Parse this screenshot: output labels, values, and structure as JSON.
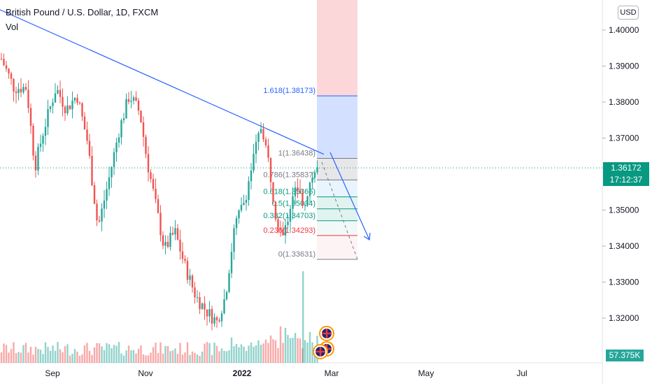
{
  "header": {
    "title": "British Pound / U.S. Dollar, 1D, FXCM",
    "volume_label": "Vol"
  },
  "toolbar": {
    "currency_label": "USD"
  },
  "price_axis": {
    "ticks": [
      "1.40000",
      "1.39000",
      "1.38000",
      "1.37000",
      "1.35000",
      "1.34000",
      "1.33000",
      "1.32000"
    ]
  },
  "time_axis": {
    "ticks": [
      "Sep",
      "Nov",
      "2022",
      "Mar",
      "May",
      "Jul"
    ]
  },
  "current_price": {
    "price": "1.36172",
    "countdown": "17:12:37",
    "color": "#089981"
  },
  "volume_readout": {
    "value": "57.375K",
    "color": "#26a69a"
  },
  "fibonacci": {
    "levels": [
      {
        "ratio": 1.618,
        "label": "1.618(1.38173)",
        "price": 1.38173,
        "color": "#2962ff"
      },
      {
        "ratio": 1,
        "label": "1(1.36438)",
        "price": 1.36438,
        "color": "#787b86"
      },
      {
        "ratio": 0.786,
        "label": "0.786(1.35837)",
        "price": 1.35837,
        "color": "#787b86"
      },
      {
        "ratio": 0.618,
        "label": "0.618(1.35366)",
        "price": 1.35366,
        "color": "#089981"
      },
      {
        "ratio": 0.5,
        "label": "0.5(1.35034)",
        "price": 1.35034,
        "color": "#089981"
      },
      {
        "ratio": 0.382,
        "label": "0.382(1.34703)",
        "price": 1.34703,
        "color": "#089981"
      },
      {
        "ratio": 0.236,
        "label": "0.236(1.34293)",
        "price": 1.34293,
        "color": "#f23645"
      },
      {
        "ratio": 0,
        "label": "0(1.33631)",
        "price": 1.33631,
        "color": "#787b86"
      }
    ]
  },
  "colors": {
    "up": "#26a69a",
    "down": "#ef5350",
    "trendline": "#2962ff"
  },
  "chart_data": {
    "type": "candlestick",
    "symbol": "British Pound / U.S. Dollar",
    "interval": "1D",
    "source": "FXCM",
    "ylim": [
      1.311,
      1.407
    ],
    "current_price": 1.36172,
    "series": [
      {
        "name": "Vol",
        "type": "bar"
      }
    ]
  }
}
